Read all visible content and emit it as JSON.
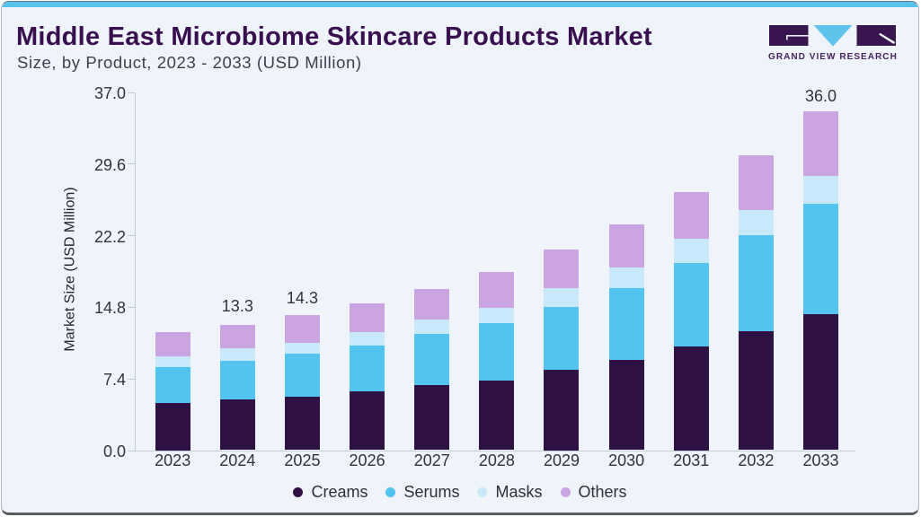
{
  "header": {
    "title": "Middle East Microbiome Skincare Products Market",
    "subtitle": "Size, by Product, 2023 - 2033 (USD Million)"
  },
  "logo": {
    "text": "GRAND VIEW RESEARCH",
    "block_color": "#3a1650",
    "triangle_color": "#5ec4ec"
  },
  "chart_data": {
    "type": "bar",
    "stacked": true,
    "title": "Middle East Microbiome Skincare Products Market Size, by Product, 2023 - 2033 (USD Million)",
    "xlabel": "",
    "ylabel": "Market Size (USD Million)",
    "ylim": [
      0,
      37.0
    ],
    "yticks": [
      0.0,
      7.4,
      14.8,
      22.2,
      29.6,
      37.0
    ],
    "ytick_labels": [
      "0.0",
      "7.4",
      "14.8",
      "22.2",
      "29.6",
      "37.0"
    ],
    "grid": false,
    "legend_position": "bottom",
    "categories": [
      "2023",
      "2024",
      "2025",
      "2026",
      "2027",
      "2028",
      "2029",
      "2030",
      "2031",
      "2032",
      "2033"
    ],
    "series": [
      {
        "name": "Creams",
        "color": "#2e1244",
        "values": [
          5.0,
          5.4,
          5.7,
          6.2,
          6.9,
          7.4,
          8.5,
          9.6,
          11.0,
          12.6,
          14.4
        ]
      },
      {
        "name": "Serums",
        "color": "#53c3f0",
        "values": [
          3.8,
          4.1,
          4.5,
          4.9,
          5.4,
          6.1,
          6.7,
          7.6,
          8.9,
          10.2,
          11.7
        ]
      },
      {
        "name": "Masks",
        "color": "#c8e9fa",
        "values": [
          1.2,
          1.3,
          1.2,
          1.4,
          1.6,
          1.6,
          2.0,
          2.2,
          2.5,
          2.7,
          3.0
        ]
      },
      {
        "name": "Others",
        "color": "#cba4e2",
        "values": [
          2.5,
          2.5,
          2.9,
          3.1,
          3.2,
          3.8,
          4.1,
          4.6,
          5.0,
          5.8,
          6.9
        ]
      }
    ],
    "totals": [
      12.5,
      13.3,
      14.3,
      15.6,
      17.1,
      18.9,
      21.3,
      24.0,
      27.4,
      31.3,
      36.0
    ],
    "annotations": [
      {
        "category": "2024",
        "text": "13.3"
      },
      {
        "category": "2025",
        "text": "14.3"
      },
      {
        "category": "2033",
        "text": "36.0"
      }
    ]
  }
}
